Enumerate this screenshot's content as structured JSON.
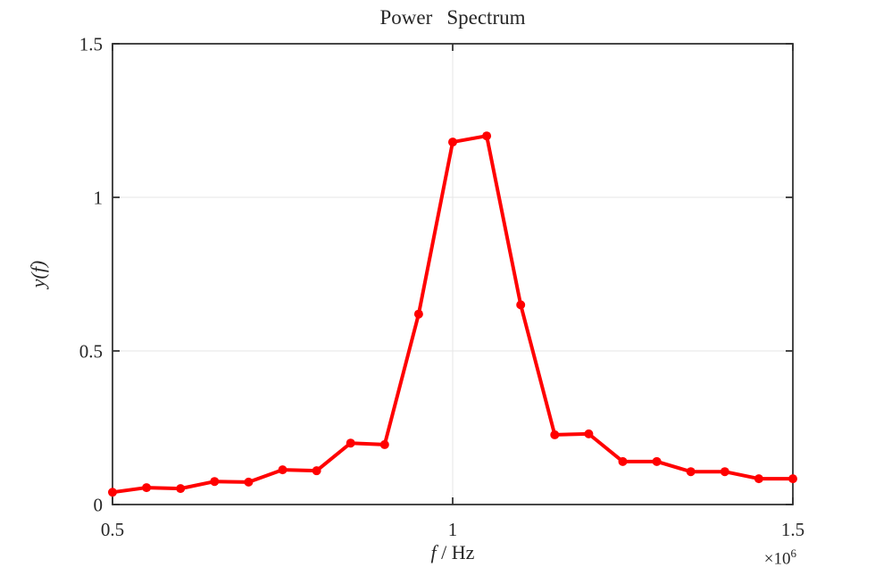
{
  "chart_data": {
    "type": "line",
    "title": "Power Spectrum",
    "xlabel": "f / Hz",
    "xlabel_parts": {
      "variable": "f",
      "rest": " / Hz"
    },
    "ylabel": "y(f)",
    "x_multiplier": {
      "text": "×10⁶",
      "base": "×10",
      "exponent": "6"
    },
    "x": [
      0.5,
      0.55,
      0.6,
      0.65,
      0.7,
      0.75,
      0.8,
      0.85,
      0.9,
      0.95,
      1.0,
      1.05,
      1.1,
      1.15,
      1.2,
      1.25,
      1.3,
      1.35,
      1.4,
      1.45,
      1.5
    ],
    "values": [
      0.04,
      0.055,
      0.052,
      0.075,
      0.073,
      0.113,
      0.11,
      0.2,
      0.195,
      0.62,
      1.18,
      1.2,
      0.65,
      0.227,
      0.23,
      0.14,
      0.14,
      0.107,
      0.107,
      0.084,
      0.084
    ],
    "xlim": [
      0.5,
      1.5
    ],
    "ylim": [
      0,
      1.5
    ],
    "x_ticks": [
      0.5,
      1,
      1.5
    ],
    "x_tick_labels": [
      "0.5",
      "1",
      "1.5"
    ],
    "y_ticks": [
      0,
      0.5,
      1,
      1.5
    ],
    "y_tick_labels": [
      "0",
      "0.5",
      "1",
      "1.5"
    ],
    "grid": true,
    "marker": "circle",
    "colors": {
      "line": "#ff0000",
      "marker": "#ff0000",
      "axis": "#333333",
      "grid": "#e6e6e6",
      "background": "#ffffff",
      "text": "#262626"
    }
  }
}
